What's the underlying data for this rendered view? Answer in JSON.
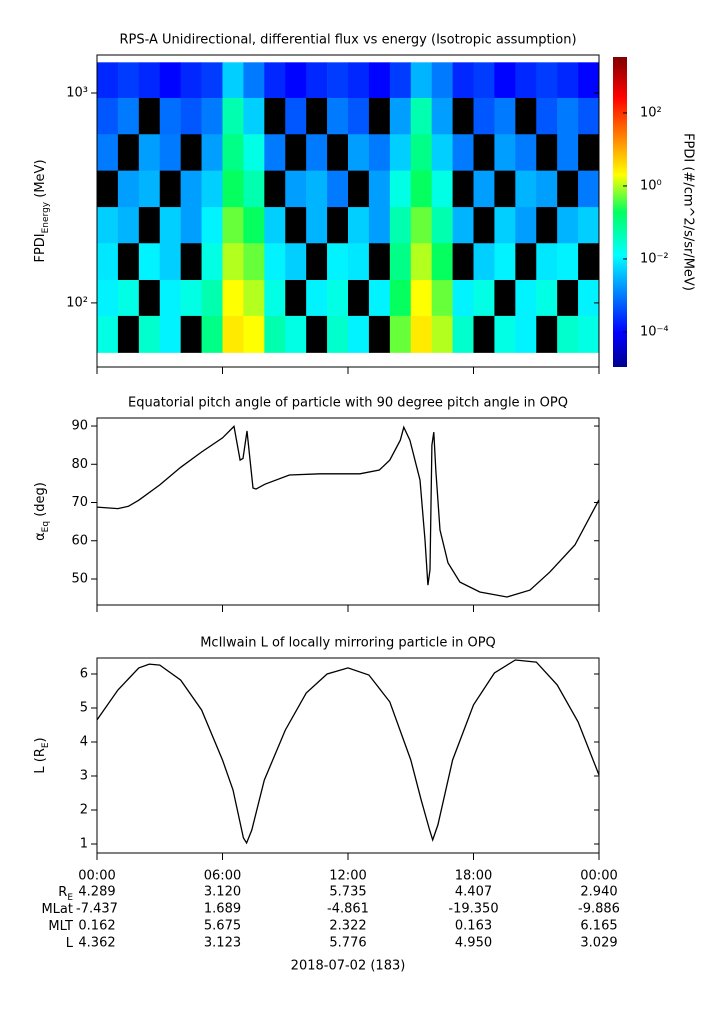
{
  "chart_data": [
    {
      "type": "heatmap",
      "title": "RPS-A Unidirectional, differential flux vs energy (Isotropic assumption)",
      "ylabel": [
        "FPDI",
        "Energy",
        " (MeV)"
      ],
      "ylog": true,
      "ylim": [
        49.5,
        1517
      ],
      "yticks": [
        {
          "value": 100,
          "label": "10²"
        },
        {
          "value": 1000,
          "label": "10³"
        }
      ],
      "xlim": [
        0,
        24
      ],
      "xticks": [
        0,
        6,
        12,
        18,
        24
      ],
      "x_bins": [
        0,
        1,
        2,
        3,
        4,
        5,
        6,
        7,
        8,
        9,
        10,
        11,
        12,
        13,
        14,
        15,
        16,
        17,
        18,
        19,
        20,
        21,
        22,
        23,
        24
      ],
      "y_bins": [
        58,
        87,
        129,
        193,
        287,
        428,
        638,
        950,
        1400
      ],
      "z": [
        [
          0.02,
          null,
          0.03,
          0.01,
          null,
          0.1,
          3,
          2,
          0.05,
          0.02,
          null,
          0.03,
          0.01,
          null,
          0.5,
          3,
          1,
          0.03,
          null,
          0.02,
          0.01,
          null,
          0.03,
          0.02
        ],
        [
          0.01,
          0.02,
          null,
          0.01,
          0.02,
          0.05,
          2,
          1,
          0.02,
          null,
          0.01,
          0.02,
          null,
          0.01,
          0.2,
          2,
          0.5,
          0.01,
          0.02,
          null,
          0.01,
          0.02,
          null,
          0.01
        ],
        [
          0.008,
          null,
          0.01,
          0.005,
          null,
          0.02,
          1,
          0.5,
          0.01,
          0.005,
          null,
          0.01,
          0.008,
          null,
          0.1,
          1,
          0.2,
          null,
          0.005,
          0.01,
          null,
          0.008,
          0.01,
          null
        ],
        [
          0.005,
          0.003,
          null,
          0.005,
          0.002,
          0.01,
          0.5,
          0.2,
          0.005,
          null,
          0.003,
          null,
          0.005,
          0.002,
          0.05,
          0.5,
          0.05,
          0.003,
          null,
          0.005,
          0.002,
          null,
          0.003,
          0.005
        ],
        [
          null,
          0.002,
          0.003,
          null,
          0.002,
          0.005,
          0.2,
          0.05,
          null,
          0.002,
          0.003,
          0.001,
          null,
          0.002,
          0.02,
          0.2,
          0.02,
          null,
          0.002,
          null,
          0.003,
          0.002,
          null,
          0.001
        ],
        [
          0.001,
          null,
          0.002,
          0.001,
          null,
          0.002,
          0.1,
          0.02,
          0.001,
          null,
          0.001,
          null,
          0.002,
          0.001,
          0.005,
          0.1,
          0.005,
          0.001,
          null,
          0.002,
          0.001,
          null,
          0.001,
          null
        ],
        [
          0.0005,
          0.001,
          null,
          0.0008,
          0.0005,
          0.001,
          0.05,
          0.005,
          null,
          0.0005,
          null,
          0.001,
          0.0005,
          null,
          0.002,
          0.05,
          0.002,
          null,
          0.0005,
          0.001,
          null,
          0.0005,
          0.001,
          0.0005
        ],
        [
          0.0002,
          0.0003,
          0.0002,
          0.0001,
          0.0002,
          0.0003,
          0.005,
          0.001,
          0.0002,
          0.0001,
          0.0002,
          0.0003,
          0.0002,
          0.0001,
          0.0003,
          0.003,
          0.001,
          0.0002,
          0.0003,
          0.0001,
          0.0002,
          0.0003,
          0.0002,
          0.0001
        ]
      ],
      "zlabel": "FPDI (#/cm^2/s/sr/MeV)",
      "zlog": true,
      "zlim": [
        1.1e-05,
        3400
      ],
      "zticks": [
        {
          "value": 0.0001,
          "label": "10⁻⁴"
        },
        {
          "value": 0.01,
          "label": "10⁻²"
        },
        {
          "value": 1,
          "label": "10⁰"
        },
        {
          "value": 100,
          "label": "10²"
        }
      ]
    },
    {
      "type": "line",
      "title": "Equatorial pitch angle of particle with 90 degree pitch angle in OPQ",
      "ylabel": [
        "α",
        "Eq",
        " (deg)"
      ],
      "ylim": [
        43.2,
        92.1
      ],
      "yticks": [
        50,
        60,
        70,
        80,
        90
      ],
      "xlim": [
        0,
        24
      ],
      "xticks": [
        0,
        6,
        12,
        18,
        24
      ],
      "color": "#000000",
      "x": [
        0,
        1,
        1.5,
        2,
        3,
        4,
        5,
        6,
        6.55,
        6.84,
        6.98,
        7.17,
        7.46,
        7.6,
        8.03,
        9.2,
        10.66,
        12.57,
        13.5,
        14,
        14.5,
        14.67,
        14.96,
        15.44,
        15.68,
        15.82,
        15.92,
        16.01,
        16.1,
        16.2,
        16.4,
        16.78,
        17.35,
        18.3,
        19.6,
        20.7,
        21.65,
        22.85,
        24
      ],
      "y": [
        68.8,
        68.4,
        69.0,
        70.6,
        74.6,
        79.2,
        83.2,
        86.9,
        89.9,
        81.1,
        81.5,
        88.7,
        73.8,
        73.5,
        74.8,
        77.2,
        77.5,
        77.5,
        78.5,
        81.1,
        86.3,
        89.7,
        86.3,
        75.9,
        60.2,
        48.4,
        52.4,
        85.0,
        88.4,
        78.5,
        62.8,
        54.2,
        49.2,
        46.6,
        45.3,
        47.1,
        51.8,
        58.9,
        70.7
      ]
    },
    {
      "type": "line",
      "title": "McIlwain L of locally mirroring particle in OPQ",
      "ylabel": [
        "L (R",
        "E",
        ")"
      ],
      "ylim": [
        0.735,
        6.47
      ],
      "yticks": [
        1,
        2,
        3,
        4,
        5,
        6
      ],
      "xlim": [
        0,
        24
      ],
      "xticks": [
        {
          "value": 0,
          "label": "00:00"
        },
        {
          "value": 6,
          "label": "06:00"
        },
        {
          "value": 12,
          "label": "12:00"
        },
        {
          "value": 18,
          "label": "18:00"
        },
        {
          "value": 24,
          "label": "00:00"
        }
      ],
      "color": "#000000",
      "x": [
        0,
        1,
        2,
        2.5,
        3,
        4,
        5,
        6,
        6.5,
        7,
        7.15,
        7.4,
        8,
        9,
        10,
        11,
        12,
        13,
        14,
        15,
        15.5,
        15.9,
        16.05,
        16.3,
        17,
        18,
        19,
        20,
        21,
        22,
        23,
        24
      ],
      "y": [
        4.65,
        5.53,
        6.18,
        6.29,
        6.26,
        5.82,
        4.94,
        3.47,
        2.59,
        1.18,
        1.03,
        1.41,
        2.88,
        4.35,
        5.44,
        6.0,
        6.18,
        5.97,
        5.18,
        3.47,
        2.29,
        1.41,
        1.12,
        1.56,
        3.47,
        5.09,
        6.03,
        6.41,
        6.35,
        5.68,
        4.59,
        3.03
      ]
    }
  ],
  "ephemeris": {
    "rows": [
      {
        "label": [
          "R",
          "E"
        ],
        "values": [
          "4.289",
          "3.120",
          "5.735",
          "4.407",
          "2.940"
        ]
      },
      {
        "label": [
          "MLat"
        ],
        "values": [
          "-7.437",
          "1.689",
          "-4.861",
          "-19.350",
          "-9.886"
        ]
      },
      {
        "label": [
          "MLT"
        ],
        "values": [
          "0.162",
          "5.675",
          "2.322",
          "0.163",
          "6.165"
        ]
      },
      {
        "label": [
          "L"
        ],
        "values": [
          "4.362",
          "3.123",
          "5.776",
          "4.950",
          "3.029"
        ]
      }
    ],
    "date": "2018-07-02 (183)"
  }
}
